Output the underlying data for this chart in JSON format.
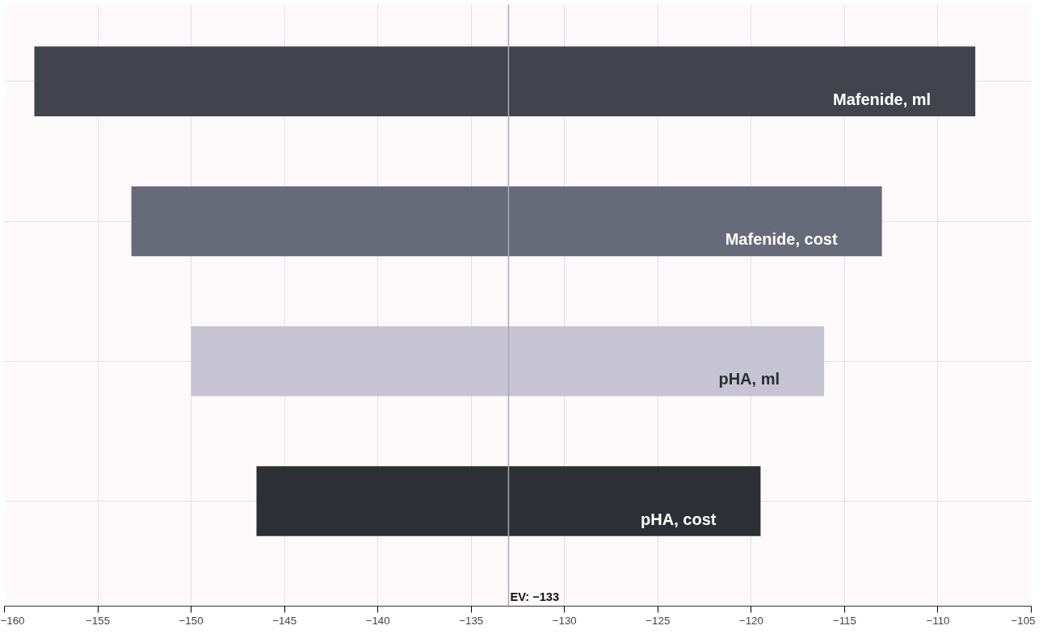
{
  "chart_data": {
    "type": "bar",
    "orientation": "horizontal",
    "categories": [
      "Mafenide, ml",
      "Mafenide, cost",
      "pHA, ml",
      "pHA, cost"
    ],
    "base": [
      -158.4,
      -153.2,
      -150.0,
      -146.5
    ],
    "values": [
      50.4,
      40.2,
      33.9,
      27.0
    ],
    "colors": [
      "#41434d",
      "#676a78",
      "#c6c3d3",
      "#2c2f33"
    ],
    "xlim": [
      -160,
      -105
    ],
    "xticks": [
      -160,
      -155,
      -150,
      -145,
      -140,
      -135,
      -130,
      -125,
      -120,
      -115,
      -110,
      -105
    ],
    "ref_lines": [
      {
        "axis": "x",
        "value": -133,
        "label": "EV: −133",
        "color": "#a9a9b3"
      }
    ],
    "grid": true,
    "tick_labels": "x"
  }
}
